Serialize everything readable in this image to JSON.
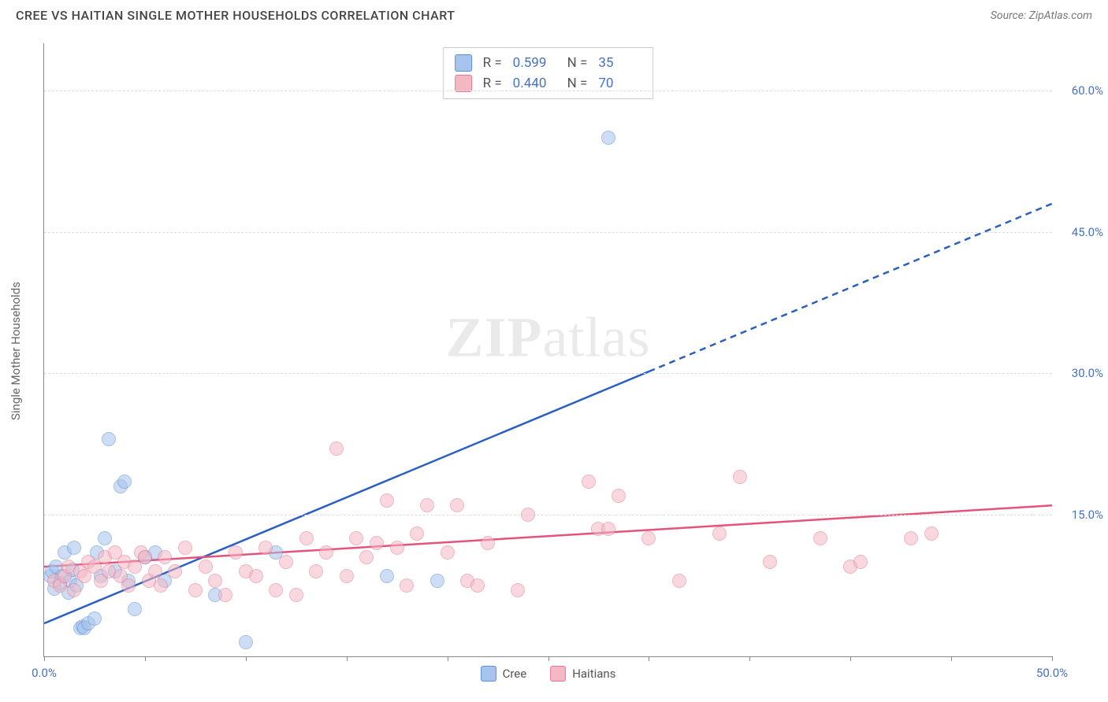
{
  "title": "CREE VS HAITIAN SINGLE MOTHER HOUSEHOLDS CORRELATION CHART",
  "source": "Source: ZipAtlas.com",
  "ylabel": "Single Mother Households",
  "watermark_a": "ZIP",
  "watermark_b": "atlas",
  "chart": {
    "type": "scatter",
    "xlim": [
      0,
      50
    ],
    "ylim": [
      0,
      65
    ],
    "xtick_positions": [
      0,
      5,
      10,
      15,
      20,
      25,
      30,
      35,
      40,
      45,
      50
    ],
    "xtick_labels": {
      "0": "0.0%",
      "50": "50.0%"
    },
    "ytick_positions": [
      15,
      30,
      45,
      60
    ],
    "ytick_labels": {
      "15": "15.0%",
      "30": "30.0%",
      "45": "45.0%",
      "60": "60.0%"
    },
    "marker_radius": 9,
    "marker_opacity": 0.55,
    "background_color": "#ffffff",
    "grid_color": "#dddddd"
  },
  "series": [
    {
      "key": "cree",
      "label": "Cree",
      "fill": "#a6c4ec",
      "stroke": "#5b8fd6",
      "reg_color": "#2b5fc0",
      "reg_width": 2.5,
      "reg": {
        "x1": 0,
        "y1": 3.5,
        "x2": 50,
        "y2": 48,
        "solid_until_x": 30
      },
      "R_label": "R =",
      "R": "0.599",
      "N_label": "N =",
      "N": "35",
      "points": [
        [
          0.3,
          8.5
        ],
        [
          0.4,
          9.0
        ],
        [
          0.5,
          7.2
        ],
        [
          0.6,
          9.5
        ],
        [
          0.8,
          7.8
        ],
        [
          0.9,
          8.5
        ],
        [
          1.0,
          11.0
        ],
        [
          1.2,
          6.8
        ],
        [
          1.3,
          8.0
        ],
        [
          1.4,
          9.2
        ],
        [
          1.5,
          11.5
        ],
        [
          1.6,
          7.5
        ],
        [
          1.8,
          3.0
        ],
        [
          1.9,
          3.2
        ],
        [
          2.0,
          3.0
        ],
        [
          2.2,
          3.5
        ],
        [
          2.5,
          4.0
        ],
        [
          2.6,
          11.0
        ],
        [
          2.8,
          8.5
        ],
        [
          3.0,
          12.5
        ],
        [
          3.2,
          23.0
        ],
        [
          3.5,
          9.0
        ],
        [
          3.8,
          18.0
        ],
        [
          4.0,
          18.5
        ],
        [
          4.2,
          8.0
        ],
        [
          4.5,
          5.0
        ],
        [
          5.0,
          10.5
        ],
        [
          5.5,
          11.0
        ],
        [
          6.0,
          8.0
        ],
        [
          8.5,
          6.5
        ],
        [
          10.0,
          1.5
        ],
        [
          11.5,
          11.0
        ],
        [
          17.0,
          8.5
        ],
        [
          19.5,
          8.0
        ],
        [
          28.0,
          55.0
        ]
      ]
    },
    {
      "key": "haitians",
      "label": "Haitians",
      "fill": "#f4b8c4",
      "stroke": "#e67a94",
      "reg_color": "#e5537a",
      "reg_width": 2.5,
      "reg": {
        "x1": 0,
        "y1": 9.5,
        "x2": 50,
        "y2": 16,
        "solid_until_x": 50
      },
      "R_label": "R =",
      "R": "0.440",
      "N_label": "N =",
      "N": "70",
      "points": [
        [
          0.5,
          8.0
        ],
        [
          0.8,
          7.5
        ],
        [
          1.0,
          8.5
        ],
        [
          1.2,
          9.5
        ],
        [
          1.5,
          7.0
        ],
        [
          1.8,
          9.0
        ],
        [
          2.0,
          8.5
        ],
        [
          2.2,
          10.0
        ],
        [
          2.5,
          9.5
        ],
        [
          2.8,
          8.0
        ],
        [
          3.0,
          10.5
        ],
        [
          3.2,
          9.0
        ],
        [
          3.5,
          11.0
        ],
        [
          3.8,
          8.5
        ],
        [
          4.0,
          10.0
        ],
        [
          4.2,
          7.5
        ],
        [
          4.5,
          9.5
        ],
        [
          4.8,
          11.0
        ],
        [
          5.0,
          10.5
        ],
        [
          5.2,
          8.0
        ],
        [
          5.5,
          9.0
        ],
        [
          5.8,
          7.5
        ],
        [
          6.0,
          10.5
        ],
        [
          6.5,
          9.0
        ],
        [
          7.0,
          11.5
        ],
        [
          7.5,
          7.0
        ],
        [
          8.0,
          9.5
        ],
        [
          8.5,
          8.0
        ],
        [
          9.0,
          6.5
        ],
        [
          9.5,
          11.0
        ],
        [
          10.0,
          9.0
        ],
        [
          10.5,
          8.5
        ],
        [
          11.0,
          11.5
        ],
        [
          11.5,
          7.0
        ],
        [
          12.0,
          10.0
        ],
        [
          12.5,
          6.5
        ],
        [
          13.0,
          12.5
        ],
        [
          13.5,
          9.0
        ],
        [
          14.0,
          11.0
        ],
        [
          14.5,
          22.0
        ],
        [
          15.0,
          8.5
        ],
        [
          15.5,
          12.5
        ],
        [
          16.0,
          10.5
        ],
        [
          16.5,
          12.0
        ],
        [
          17.0,
          16.5
        ],
        [
          17.5,
          11.5
        ],
        [
          18.0,
          7.5
        ],
        [
          18.5,
          13.0
        ],
        [
          19.0,
          16.0
        ],
        [
          20.0,
          11.0
        ],
        [
          20.5,
          16.0
        ],
        [
          21.0,
          8.0
        ],
        [
          21.5,
          7.5
        ],
        [
          22.0,
          12.0
        ],
        [
          23.5,
          7.0
        ],
        [
          24.0,
          15.0
        ],
        [
          27.0,
          18.5
        ],
        [
          27.5,
          13.5
        ],
        [
          28.0,
          13.5
        ],
        [
          28.5,
          17.0
        ],
        [
          30.0,
          12.5
        ],
        [
          31.5,
          8.0
        ],
        [
          33.5,
          13.0
        ],
        [
          34.5,
          19.0
        ],
        [
          36.0,
          10.0
        ],
        [
          38.5,
          12.5
        ],
        [
          40.0,
          9.5
        ],
        [
          40.5,
          10.0
        ],
        [
          43.0,
          12.5
        ],
        [
          44.0,
          13.0
        ]
      ]
    }
  ],
  "legend": {
    "cree": "Cree",
    "haitians": "Haitians"
  }
}
